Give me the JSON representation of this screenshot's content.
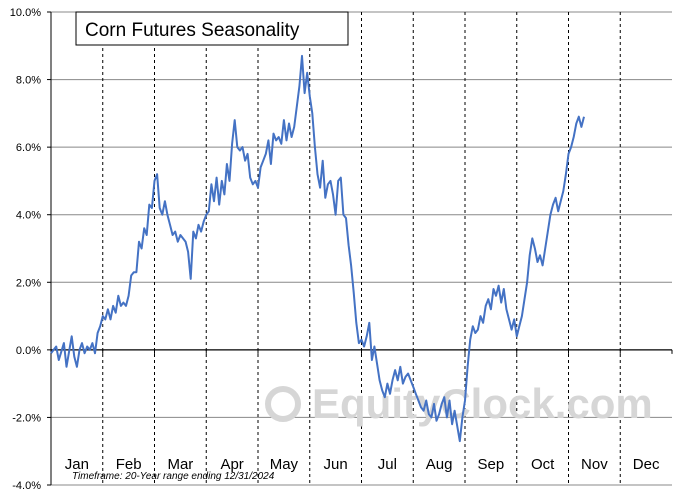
{
  "chart_data": {
    "type": "line",
    "title": "Corn Futures Seasonality",
    "xlabel": "",
    "ylabel": "",
    "ylim": [
      -4.0,
      10.0
    ],
    "y_ticks": [
      "10.0%",
      "8.0%",
      "6.0%",
      "4.0%",
      "2.0%",
      "0.0%",
      "-2.0%",
      "-4.0%"
    ],
    "y_tick_values": [
      10,
      8,
      6,
      4,
      2,
      0,
      -2,
      -4
    ],
    "months": [
      "Jan",
      "Feb",
      "Mar",
      "Apr",
      "May",
      "Jun",
      "Jul",
      "Aug",
      "Sep",
      "Oct",
      "Nov",
      "Dec"
    ],
    "grid": true,
    "footnote": "Timeframe: 20-Year range ending 12/31/2024",
    "watermark": "EquityClock.com",
    "series_color": "#4472c4",
    "series": [
      {
        "values": [
          [
            0.0,
            -0.1
          ],
          [
            0.1,
            0.1
          ],
          [
            0.15,
            -0.3
          ],
          [
            0.25,
            0.2
          ],
          [
            0.3,
            -0.5
          ],
          [
            0.4,
            0.4
          ],
          [
            0.45,
            -0.2
          ],
          [
            0.5,
            -0.5
          ],
          [
            0.55,
            0.0
          ],
          [
            0.6,
            0.2
          ],
          [
            0.65,
            -0.1
          ],
          [
            0.7,
            0.1
          ],
          [
            0.75,
            0.0
          ],
          [
            0.8,
            0.2
          ],
          [
            0.85,
            -0.1
          ],
          [
            0.9,
            0.5
          ],
          [
            0.95,
            0.7
          ],
          [
            1.0,
            1.0
          ],
          [
            1.05,
            0.9
          ],
          [
            1.1,
            1.2
          ],
          [
            1.15,
            0.9
          ],
          [
            1.2,
            1.3
          ],
          [
            1.25,
            1.1
          ],
          [
            1.3,
            1.6
          ],
          [
            1.35,
            1.3
          ],
          [
            1.4,
            1.4
          ],
          [
            1.45,
            1.3
          ],
          [
            1.5,
            1.6
          ],
          [
            1.55,
            2.2
          ],
          [
            1.6,
            2.3
          ],
          [
            1.65,
            2.3
          ],
          [
            1.7,
            3.2
          ],
          [
            1.75,
            3.0
          ],
          [
            1.8,
            3.6
          ],
          [
            1.85,
            3.4
          ],
          [
            1.9,
            4.3
          ],
          [
            1.95,
            4.2
          ],
          [
            2.0,
            5.0
          ],
          [
            2.05,
            5.2
          ],
          [
            2.1,
            4.2
          ],
          [
            2.15,
            4.0
          ],
          [
            2.2,
            4.4
          ],
          [
            2.25,
            4.0
          ],
          [
            2.3,
            3.7
          ],
          [
            2.35,
            3.4
          ],
          [
            2.4,
            3.5
          ],
          [
            2.45,
            3.2
          ],
          [
            2.5,
            3.4
          ],
          [
            2.6,
            3.2
          ],
          [
            2.65,
            2.9
          ],
          [
            2.7,
            2.1
          ],
          [
            2.75,
            3.5
          ],
          [
            2.8,
            3.3
          ],
          [
            2.85,
            3.7
          ],
          [
            2.9,
            3.5
          ],
          [
            2.95,
            3.8
          ],
          [
            3.0,
            4.0
          ],
          [
            3.05,
            4.1
          ],
          [
            3.1,
            4.9
          ],
          [
            3.15,
            4.4
          ],
          [
            3.2,
            5.1
          ],
          [
            3.25,
            4.3
          ],
          [
            3.3,
            5.0
          ],
          [
            3.35,
            4.6
          ],
          [
            3.4,
            5.5
          ],
          [
            3.45,
            5.0
          ],
          [
            3.5,
            6.1
          ],
          [
            3.55,
            6.8
          ],
          [
            3.6,
            6.0
          ],
          [
            3.65,
            5.9
          ],
          [
            3.7,
            6.0
          ],
          [
            3.75,
            5.6
          ],
          [
            3.8,
            5.8
          ],
          [
            3.85,
            5.1
          ],
          [
            3.9,
            4.9
          ],
          [
            3.95,
            5.0
          ],
          [
            4.0,
            4.8
          ],
          [
            4.05,
            5.4
          ],
          [
            4.1,
            5.6
          ],
          [
            4.15,
            5.8
          ],
          [
            4.2,
            6.2
          ],
          [
            4.25,
            5.5
          ],
          [
            4.3,
            6.4
          ],
          [
            4.35,
            6.2
          ],
          [
            4.4,
            6.3
          ],
          [
            4.45,
            6.1
          ],
          [
            4.5,
            6.8
          ],
          [
            4.55,
            6.2
          ],
          [
            4.6,
            6.7
          ],
          [
            4.65,
            6.3
          ],
          [
            4.7,
            6.6
          ],
          [
            4.75,
            7.2
          ],
          [
            4.8,
            7.8
          ],
          [
            4.85,
            8.7
          ],
          [
            4.9,
            7.6
          ],
          [
            4.95,
            8.2
          ],
          [
            5.0,
            7.5
          ],
          [
            5.05,
            7.0
          ],
          [
            5.1,
            6.0
          ],
          [
            5.15,
            5.2
          ],
          [
            5.2,
            4.8
          ],
          [
            5.25,
            5.6
          ],
          [
            5.3,
            4.5
          ],
          [
            5.35,
            4.9
          ],
          [
            5.4,
            5.0
          ],
          [
            5.45,
            4.6
          ],
          [
            5.5,
            4.0
          ],
          [
            5.55,
            5.0
          ],
          [
            5.6,
            5.1
          ],
          [
            5.65,
            4.0
          ],
          [
            5.7,
            3.9
          ],
          [
            5.75,
            3.1
          ],
          [
            5.8,
            2.5
          ],
          [
            5.85,
            1.7
          ],
          [
            5.9,
            0.8
          ],
          [
            5.95,
            0.2
          ],
          [
            6.0,
            0.3
          ],
          [
            6.05,
            0.1
          ],
          [
            6.1,
            0.4
          ],
          [
            6.15,
            0.8
          ],
          [
            6.2,
            -0.3
          ],
          [
            6.25,
            0.1
          ],
          [
            6.3,
            -0.4
          ],
          [
            6.35,
            -0.9
          ],
          [
            6.4,
            -1.2
          ],
          [
            6.45,
            -1.4
          ],
          [
            6.5,
            -1.0
          ],
          [
            6.55,
            -1.3
          ],
          [
            6.6,
            -0.9
          ],
          [
            6.65,
            -0.6
          ],
          [
            6.7,
            -0.9
          ],
          [
            6.75,
            -0.5
          ],
          [
            6.8,
            -1.0
          ],
          [
            6.85,
            -0.8
          ],
          [
            6.9,
            -0.7
          ],
          [
            6.95,
            -0.9
          ],
          [
            7.0,
            -1.1
          ],
          [
            7.05,
            -1.3
          ],
          [
            7.1,
            -1.5
          ],
          [
            7.15,
            -1.7
          ],
          [
            7.2,
            -1.8
          ],
          [
            7.25,
            -1.5
          ],
          [
            7.3,
            -1.9
          ],
          [
            7.35,
            -2.0
          ],
          [
            7.4,
            -1.6
          ],
          [
            7.45,
            -2.1
          ],
          [
            7.5,
            -1.9
          ],
          [
            7.55,
            -1.6
          ],
          [
            7.6,
            -1.4
          ],
          [
            7.65,
            -2.0
          ],
          [
            7.7,
            -1.5
          ],
          [
            7.75,
            -2.2
          ],
          [
            7.8,
            -1.8
          ],
          [
            7.9,
            -2.7
          ],
          [
            7.95,
            -2.0
          ],
          [
            8.0,
            -1.5
          ],
          [
            8.05,
            -0.5
          ],
          [
            8.1,
            0.3
          ],
          [
            8.15,
            0.7
          ],
          [
            8.2,
            0.5
          ],
          [
            8.25,
            0.6
          ],
          [
            8.3,
            1.0
          ],
          [
            8.35,
            0.8
          ],
          [
            8.4,
            1.3
          ],
          [
            8.45,
            1.5
          ],
          [
            8.5,
            1.2
          ],
          [
            8.55,
            1.8
          ],
          [
            8.6,
            1.6
          ],
          [
            8.65,
            1.9
          ],
          [
            8.7,
            1.4
          ],
          [
            8.75,
            1.8
          ],
          [
            8.8,
            1.2
          ],
          [
            8.85,
            0.9
          ],
          [
            8.9,
            0.6
          ],
          [
            8.95,
            0.9
          ],
          [
            9.0,
            0.4
          ],
          [
            9.05,
            0.7
          ],
          [
            9.1,
            1.0
          ],
          [
            9.15,
            1.5
          ],
          [
            9.2,
            2.0
          ],
          [
            9.25,
            2.8
          ],
          [
            9.3,
            3.3
          ],
          [
            9.35,
            3.0
          ],
          [
            9.4,
            2.6
          ],
          [
            9.45,
            2.8
          ],
          [
            9.5,
            2.5
          ],
          [
            9.55,
            3.0
          ],
          [
            9.6,
            3.5
          ],
          [
            9.65,
            4.0
          ],
          [
            9.7,
            4.3
          ],
          [
            9.75,
            4.5
          ],
          [
            9.8,
            4.1
          ],
          [
            9.85,
            4.4
          ],
          [
            9.9,
            4.7
          ],
          [
            9.95,
            5.2
          ],
          [
            10.0,
            5.8
          ],
          [
            10.05,
            6.0
          ],
          [
            10.1,
            6.3
          ],
          [
            10.15,
            6.7
          ],
          [
            10.2,
            6.9
          ],
          [
            10.25,
            6.6
          ],
          [
            10.3,
            6.9
          ]
        ]
      }
    ]
  }
}
